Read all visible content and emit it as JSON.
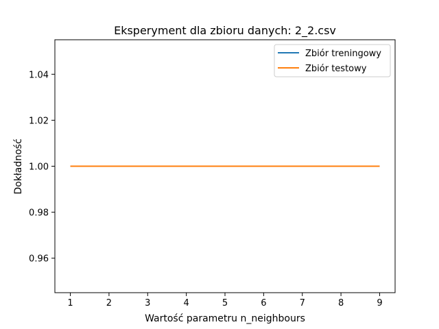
{
  "chart_data": {
    "type": "line",
    "title": "Eksperyment dla zbioru danych: 2_2.csv",
    "xlabel": "Wartość parametru n_neighbours",
    "ylabel": "Dokładność",
    "x": [
      1,
      2,
      3,
      4,
      5,
      6,
      7,
      8,
      9
    ],
    "xticks": [
      "1",
      "2",
      "3",
      "4",
      "5",
      "6",
      "7",
      "8",
      "9"
    ],
    "yticks": [
      "0.96",
      "0.98",
      "1.00",
      "1.02",
      "1.04"
    ],
    "xlim": [
      0.6,
      9.4
    ],
    "ylim": [
      0.945,
      1.055
    ],
    "grid": false,
    "legend_position": "upper right",
    "series": [
      {
        "name": "Zbiór treningowy",
        "color": "#1f77b4",
        "values": [
          1.0,
          1.0,
          1.0,
          1.0,
          1.0,
          1.0,
          1.0,
          1.0,
          1.0
        ]
      },
      {
        "name": "Zbiór testowy",
        "color": "#ff7f0e",
        "values": [
          1.0,
          1.0,
          1.0,
          1.0,
          1.0,
          1.0,
          1.0,
          1.0,
          1.0
        ]
      }
    ]
  }
}
